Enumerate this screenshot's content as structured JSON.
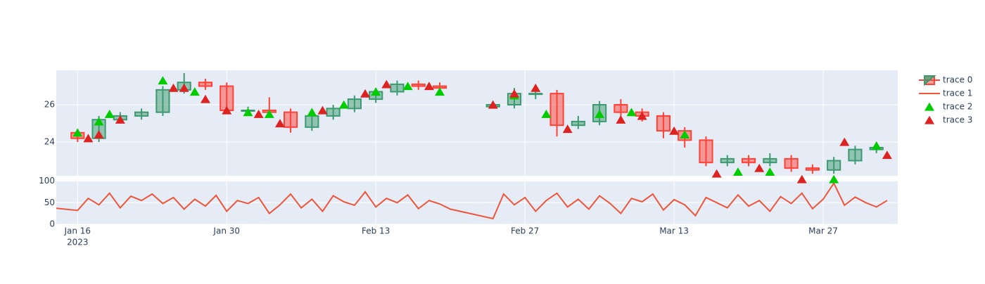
{
  "chart_data": {
    "type": "candlestick",
    "xlim": [
      "2023-01-14",
      "2023-04-03"
    ],
    "xticks": [
      {
        "value": "2023-01-16",
        "label": "Jan 16"
      },
      {
        "value": "2023-01-30",
        "label": "Jan 30"
      },
      {
        "value": "2023-02-13",
        "label": "Feb 13"
      },
      {
        "value": "2023-02-27",
        "label": "Feb 27"
      },
      {
        "value": "2023-03-13",
        "label": "Mar 13"
      },
      {
        "value": "2023-03-27",
        "label": "Mar 27"
      }
    ],
    "xtick_year": "2023",
    "ylim": [
      22.19,
      27.85
    ],
    "yticks": [
      24,
      26
    ],
    "y2lim": [
      0,
      101
    ],
    "y2ticks": [
      0,
      50,
      100
    ],
    "grid": true,
    "series": [
      {
        "name": "trace 0",
        "type": "candlestick",
        "increasing_color": "#3D9970",
        "decreasing_color": "#FF4136",
        "x": [
          "2023-01-16",
          "2023-01-18",
          "2023-01-20",
          "2023-01-22",
          "2023-01-24",
          "2023-01-26",
          "2023-01-28",
          "2023-01-30",
          "2023-02-01",
          "2023-02-03",
          "2023-02-05",
          "2023-02-07",
          "2023-02-09",
          "2023-02-11",
          "2023-02-13",
          "2023-02-15",
          "2023-02-17",
          "2023-02-19",
          "2023-02-24",
          "2023-02-26",
          "2023-02-28",
          "2023-03-02",
          "2023-03-04",
          "2023-03-06",
          "2023-03-08",
          "2023-03-10",
          "2023-03-12",
          "2023-03-14",
          "2023-03-16",
          "2023-03-18",
          "2023-03-20",
          "2023-03-22",
          "2023-03-24",
          "2023-03-26",
          "2023-03-28",
          "2023-03-30",
          "2023-04-01"
        ],
        "open": [
          24.5,
          24.2,
          25.2,
          25.4,
          25.6,
          26.8,
          27.2,
          27.0,
          25.7,
          25.7,
          25.6,
          24.8,
          25.4,
          25.8,
          26.3,
          26.7,
          27.1,
          27.0,
          25.9,
          26.0,
          26.6,
          26.6,
          24.9,
          25.1,
          26.0,
          25.6,
          25.4,
          24.6,
          24.1,
          22.9,
          23.1,
          22.9,
          23.1,
          22.6,
          22.5,
          23.0,
          23.6
        ],
        "high": [
          24.7,
          25.4,
          25.6,
          25.8,
          27.0,
          27.7,
          27.4,
          27.2,
          25.9,
          26.4,
          25.8,
          25.6,
          26.0,
          26.5,
          26.9,
          27.3,
          27.3,
          27.2,
          26.2,
          26.9,
          27.0,
          26.8,
          25.4,
          26.2,
          26.3,
          25.8,
          25.6,
          24.8,
          24.3,
          23.3,
          23.3,
          23.4,
          23.3,
          22.8,
          23.2,
          23.8,
          24.0
        ],
        "low": [
          24.0,
          24.0,
          25.0,
          25.2,
          25.4,
          26.6,
          26.8,
          25.5,
          25.5,
          25.4,
          24.5,
          24.6,
          25.2,
          25.6,
          26.1,
          26.5,
          26.8,
          26.6,
          25.8,
          25.8,
          26.3,
          24.3,
          24.7,
          24.9,
          25.4,
          25.1,
          24.2,
          23.7,
          22.7,
          22.7,
          22.7,
          22.7,
          22.4,
          22.3,
          22.3,
          22.8,
          23.4
        ],
        "close": [
          24.2,
          25.2,
          25.4,
          25.6,
          26.8,
          27.2,
          27.0,
          25.7,
          25.7,
          25.6,
          24.8,
          25.4,
          25.8,
          26.3,
          26.7,
          27.1,
          27.0,
          26.9,
          26.0,
          26.6,
          26.6,
          24.9,
          25.1,
          26.0,
          25.6,
          25.4,
          24.6,
          24.1,
          22.9,
          23.1,
          22.9,
          23.1,
          22.6,
          22.5,
          23.0,
          23.6,
          23.7
        ]
      },
      {
        "name": "trace 1",
        "type": "line",
        "axis": "y2",
        "color": "#EF553B",
        "x": [
          "2023-01-14",
          "2023-01-16",
          "2023-01-17",
          "2023-01-18",
          "2023-01-19",
          "2023-01-20",
          "2023-01-21",
          "2023-01-22",
          "2023-01-23",
          "2023-01-24",
          "2023-01-25",
          "2023-01-26",
          "2023-01-27",
          "2023-01-28",
          "2023-01-29",
          "2023-01-30",
          "2023-01-31",
          "2023-02-01",
          "2023-02-02",
          "2023-02-03",
          "2023-02-04",
          "2023-02-05",
          "2023-02-06",
          "2023-02-07",
          "2023-02-08",
          "2023-02-09",
          "2023-02-10",
          "2023-02-11",
          "2023-02-12",
          "2023-02-13",
          "2023-02-14",
          "2023-02-15",
          "2023-02-16",
          "2023-02-17",
          "2023-02-18",
          "2023-02-19",
          "2023-02-20",
          "2023-02-24",
          "2023-02-25",
          "2023-02-26",
          "2023-02-27",
          "2023-02-28",
          "2023-03-01",
          "2023-03-02",
          "2023-03-03",
          "2023-03-04",
          "2023-03-05",
          "2023-03-06",
          "2023-03-07",
          "2023-03-08",
          "2023-03-09",
          "2023-03-10",
          "2023-03-11",
          "2023-03-12",
          "2023-03-13",
          "2023-03-14",
          "2023-03-15",
          "2023-03-16",
          "2023-03-17",
          "2023-03-18",
          "2023-03-19",
          "2023-03-20",
          "2023-03-21",
          "2023-03-22",
          "2023-03-23",
          "2023-03-24",
          "2023-03-25",
          "2023-03-26",
          "2023-03-27",
          "2023-03-28",
          "2023-03-29",
          "2023-03-30",
          "2023-03-31",
          "2023-04-01",
          "2023-04-02"
        ],
        "values": [
          37,
          32,
          60,
          45,
          72,
          38,
          65,
          55,
          70,
          48,
          62,
          35,
          58,
          42,
          67,
          30,
          55,
          48,
          62,
          25,
          45,
          70,
          38,
          58,
          30,
          66,
          52,
          44,
          75,
          40,
          60,
          50,
          68,
          36,
          55,
          47,
          35,
          13,
          70,
          45,
          62,
          30,
          55,
          72,
          40,
          58,
          35,
          66,
          48,
          25,
          60,
          52,
          70,
          33,
          57,
          45,
          20,
          62,
          50,
          38,
          68,
          42,
          55,
          30,
          64,
          48,
          72,
          36,
          58,
          95,
          44,
          63,
          50,
          40,
          55
        ]
      },
      {
        "name": "trace 2",
        "type": "scatter",
        "color": "#00CC00",
        "x": [
          "2023-01-16",
          "2023-01-18",
          "2023-01-19",
          "2023-01-24",
          "2023-01-27",
          "2023-02-01",
          "2023-02-03",
          "2023-02-07",
          "2023-02-10",
          "2023-02-13",
          "2023-02-16",
          "2023-02-19",
          "2023-02-26",
          "2023-03-01",
          "2023-03-06",
          "2023-03-09",
          "2023-03-14",
          "2023-03-19",
          "2023-03-22",
          "2023-03-28",
          "2023-04-01"
        ],
        "values": [
          24.5,
          25.1,
          25.5,
          27.3,
          26.7,
          25.6,
          25.5,
          25.6,
          26.0,
          26.7,
          27.0,
          26.7,
          26.5,
          25.5,
          25.5,
          25.6,
          24.4,
          22.4,
          22.4,
          22.0,
          23.8
        ]
      },
      {
        "name": "trace 3",
        "type": "scatter",
        "color": "#DD2222",
        "x": [
          "2023-01-17",
          "2023-01-18",
          "2023-01-20",
          "2023-01-25",
          "2023-01-26",
          "2023-01-28",
          "2023-01-30",
          "2023-02-02",
          "2023-02-04",
          "2023-02-08",
          "2023-02-12",
          "2023-02-14",
          "2023-02-18",
          "2023-02-24",
          "2023-02-26",
          "2023-02-28",
          "2023-03-03",
          "2023-03-08",
          "2023-03-10",
          "2023-03-13",
          "2023-03-17",
          "2023-03-21",
          "2023-03-25",
          "2023-03-29",
          "2023-04-02"
        ],
        "values": [
          24.2,
          24.4,
          25.2,
          26.9,
          26.9,
          26.3,
          25.7,
          25.5,
          25.0,
          25.7,
          26.6,
          27.1,
          27.0,
          26.0,
          26.6,
          26.9,
          24.7,
          25.2,
          25.4,
          24.6,
          22.3,
          22.6,
          22.0,
          24.0,
          23.3
        ]
      }
    ]
  }
}
